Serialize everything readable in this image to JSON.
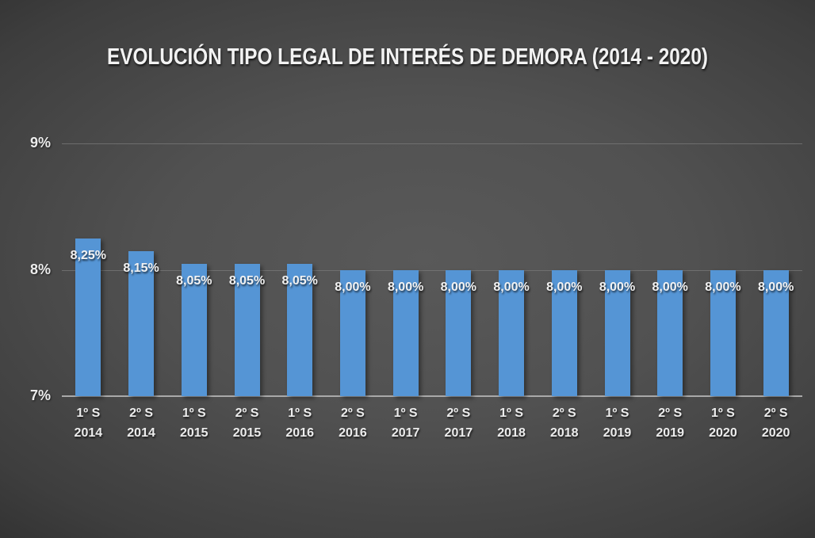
{
  "chart_data": {
    "type": "bar",
    "title": "EVOLUCIÓN TIPO LEGAL DE INTERÉS DE DEMORA (2014 - 2020)",
    "categories": [
      [
        "1º S",
        "2014"
      ],
      [
        "2º S",
        "2014"
      ],
      [
        "1º S",
        "2015"
      ],
      [
        "2º S",
        "2015"
      ],
      [
        "1º S",
        "2016"
      ],
      [
        "2º S",
        "2016"
      ],
      [
        "1º S",
        "2017"
      ],
      [
        "2º S",
        "2017"
      ],
      [
        "1º S",
        "2018"
      ],
      [
        "2º S",
        "2018"
      ],
      [
        "1º S",
        "2019"
      ],
      [
        "2º S",
        "2019"
      ],
      [
        "1º S",
        "2020"
      ],
      [
        "2º S",
        "2020"
      ]
    ],
    "values": [
      8.25,
      8.15,
      8.05,
      8.05,
      8.05,
      8.0,
      8.0,
      8.0,
      8.0,
      8.0,
      8.0,
      8.0,
      8.0,
      8.0
    ],
    "value_labels": [
      "8,25%",
      "8,15%",
      "8,05%",
      "8,05%",
      "8,05%",
      "8,00%",
      "8,00%",
      "8,00%",
      "8,00%",
      "8,00%",
      "8,00%",
      "8,00%",
      "8,00%",
      "8,00%"
    ],
    "xlabel": "",
    "ylabel": "",
    "y_axis": {
      "min": 7,
      "max": 9,
      "ticks": [
        {
          "value": 7,
          "label": "7%"
        },
        {
          "value": 8,
          "label": "8%"
        },
        {
          "value": 9,
          "label": "9%"
        }
      ]
    },
    "grid": "horizontal",
    "legend": "none",
    "data_label_position": "inside-end",
    "colors": {
      "bar": "#5595D5",
      "title_text": "#F2F2F2",
      "tick_text": "#ECECEC",
      "value_label_text": "#F2F2F2",
      "gridline": "#7A7A7A",
      "axis_line": "#A9A9A9",
      "background_center": "#595959",
      "background_edge": "#242424"
    }
  }
}
